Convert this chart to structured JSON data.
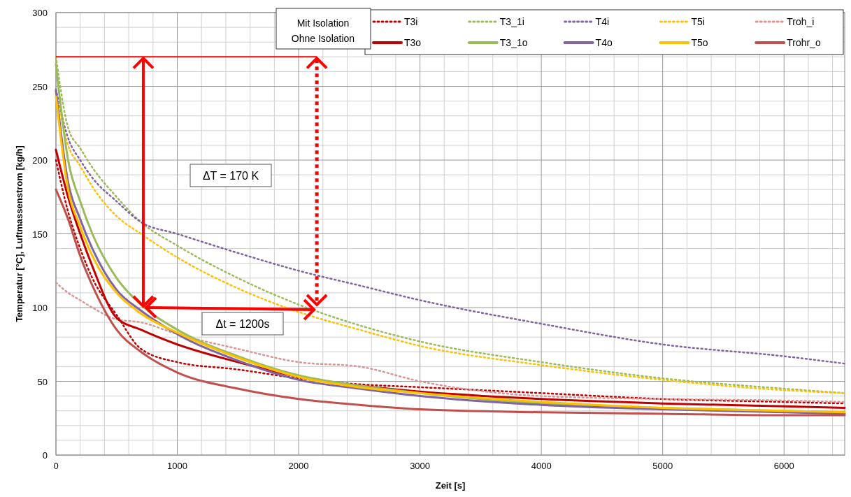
{
  "chart_data": {
    "type": "line",
    "xlabel": "Zeit [s]",
    "ylabel": "Temperatur [°C], Luftmassenstrom [kg/h]",
    "x": [
      0,
      100,
      200,
      300,
      500,
      700,
      1000,
      1500,
      2000,
      2500,
      3000,
      4000,
      5000,
      6000,
      6500
    ],
    "xlim": [
      0,
      6500
    ],
    "xticks": [
      0,
      1000,
      2000,
      3000,
      4000,
      5000,
      6000
    ],
    "ylim": [
      0,
      300
    ],
    "yticks": [
      0,
      50,
      100,
      150,
      200,
      250,
      300
    ],
    "grid": true,
    "legend": "top right",
    "annotations": [
      "Mit Isolation",
      "Ohne Isolation",
      "ΔT = 170 K",
      "Δt = 1200s"
    ],
    "series": [
      {
        "name": "T3i",
        "color": "#c00000",
        "line_style": "dotted",
        "values": [
          200,
          165,
          140,
          120,
          95,
          72,
          63,
          58,
          52,
          48,
          46,
          42,
          38,
          36,
          35
        ]
      },
      {
        "name": "T3_1i",
        "color": "#9bbb59",
        "line_style": "dotted",
        "values": [
          270,
          222,
          208,
          195,
          175,
          158,
          142,
          120,
          102,
          88,
          77,
          63,
          52,
          45,
          42
        ]
      },
      {
        "name": "T4i",
        "color": "#8064a2",
        "line_style": "dotted",
        "values": [
          248,
          215,
          200,
          188,
          172,
          158,
          150,
          137,
          125,
          115,
          105,
          89,
          75,
          67,
          62
        ]
      },
      {
        "name": "T5i",
        "color": "#ffc000",
        "line_style": "dotted",
        "values": [
          245,
          210,
          196,
          182,
          162,
          150,
          134,
          113,
          97,
          85,
          74,
          61,
          51,
          44,
          42
        ]
      },
      {
        "name": "Troh_i",
        "color": "#d99694",
        "line_style": "dotted",
        "values": [
          117,
          110,
          105,
          100,
          92,
          90,
          82,
          72,
          63,
          60,
          50,
          40,
          38,
          37,
          36
        ]
      },
      {
        "name": "T3o",
        "color": "#c00000",
        "line_style": "solid",
        "values": [
          207,
          175,
          150,
          128,
          93,
          85,
          75,
          63,
          53,
          47,
          43,
          38,
          35,
          33,
          32
        ]
      },
      {
        "name": "T3_1o",
        "color": "#9bbb59",
        "line_style": "solid",
        "values": [
          265,
          200,
          172,
          150,
          120,
          102,
          85,
          67,
          54,
          47,
          42,
          35,
          32,
          30,
          29
        ]
      },
      {
        "name": "T4o",
        "color": "#8064a2",
        "line_style": "solid",
        "values": [
          247,
          185,
          160,
          140,
          112,
          98,
          82,
          64,
          51,
          45,
          40,
          34,
          31,
          29,
          28
        ]
      },
      {
        "name": "T5o",
        "color": "#ffc000",
        "line_style": "solid",
        "values": [
          243,
          180,
          155,
          135,
          110,
          96,
          83,
          66,
          53,
          46,
          42,
          36,
          32,
          30,
          29
        ]
      },
      {
        "name": "Trohr_o",
        "color": "#c0504d",
        "line_style": "solid",
        "values": [
          180,
          160,
          135,
          115,
          85,
          70,
          56,
          45,
          38,
          34,
          31,
          29,
          28,
          27,
          27
        ]
      }
    ]
  }
}
